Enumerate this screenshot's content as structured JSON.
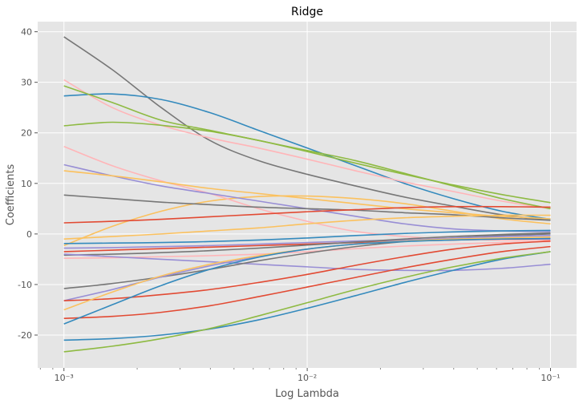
{
  "chart_data": {
    "type": "line",
    "title": "Ridge",
    "xlabel": "Log Lambda",
    "ylabel": "Coefficients",
    "xscale": "log",
    "xlim": [
      0.00078,
      0.128
    ],
    "ylim": [
      -26.5,
      42
    ],
    "grid": true,
    "legend": "none",
    "x_tick_labels": [
      "10⁻³",
      "10⁻²",
      "10⁻¹"
    ],
    "x_tick_values": [
      0.001,
      0.01,
      0.1
    ],
    "y_tick_values": [
      -20,
      -10,
      0,
      10,
      20,
      30,
      40
    ],
    "y_tick_labels": [
      "-20",
      "-10",
      "0",
      "10",
      "20",
      "30",
      "40"
    ],
    "x": [
      0.001,
      0.00158,
      0.00251,
      0.00398,
      0.00631,
      0.01,
      0.0158,
      0.0251,
      0.0398,
      0.0631,
      0.1
    ],
    "series": [
      {
        "color": "#777777",
        "values": [
          39.0,
          32.5,
          25.0,
          18.5,
          14.5,
          11.8,
          9.5,
          7.3,
          5.5,
          3.8,
          2.7
        ]
      },
      {
        "color": "#348ABD",
        "values": [
          27.3,
          27.7,
          26.6,
          24.0,
          20.5,
          17.0,
          13.5,
          10.0,
          7.0,
          4.5,
          2.9
        ]
      },
      {
        "color": "#FBC15E",
        "values": [
          -2.3,
          1.5,
          4.5,
          6.5,
          7.4,
          7.5,
          7.0,
          6.0,
          4.5,
          3.0,
          2.0
        ]
      },
      {
        "color": "#FFB5B8",
        "values": [
          30.5,
          25.0,
          21.5,
          19.0,
          17.0,
          14.8,
          12.5,
          10.3,
          8.4,
          6.5,
          5.0
        ]
      },
      {
        "color": "#8EBA42",
        "values": [
          29.3,
          26.0,
          22.5,
          20.5,
          18.5,
          16.5,
          14.5,
          12.0,
          9.5,
          7.0,
          5.0
        ]
      },
      {
        "color": "#8EBA42",
        "values": [
          21.4,
          22.1,
          21.5,
          20.3,
          18.5,
          16.3,
          14.0,
          11.8,
          9.7,
          7.8,
          6.2
        ]
      },
      {
        "color": "#FFB5B8",
        "values": [
          17.3,
          13.5,
          10.5,
          8.0,
          5.0,
          2.5,
          0.5,
          -0.5,
          -1.0,
          -1.2,
          -1.2
        ]
      },
      {
        "color": "#988ED5",
        "values": [
          13.7,
          11.5,
          9.5,
          8.0,
          6.5,
          5.0,
          3.5,
          2.0,
          1.0,
          0.6,
          0.5
        ]
      },
      {
        "color": "#FBC15E",
        "values": [
          12.5,
          11.5,
          10.3,
          9.0,
          8.0,
          7.0,
          6.0,
          5.0,
          4.2,
          3.5,
          3.0
        ]
      },
      {
        "color": "#777777",
        "values": [
          7.7,
          7.0,
          6.3,
          5.8,
          5.3,
          5.0,
          4.7,
          4.2,
          3.8,
          3.2,
          2.7
        ]
      },
      {
        "color": "#E24A33",
        "values": [
          2.2,
          2.5,
          2.9,
          3.4,
          3.9,
          4.4,
          4.8,
          5.2,
          5.4,
          5.4,
          5.3
        ]
      },
      {
        "color": "#FBC15E",
        "values": [
          -1.0,
          -0.5,
          0.0,
          0.6,
          1.2,
          2.0,
          2.7,
          3.2,
          3.5,
          3.7,
          3.7
        ]
      },
      {
        "color": "#348ABD",
        "values": [
          -1.9,
          -1.8,
          -1.7,
          -1.5,
          -1.2,
          -0.8,
          -0.3,
          0.1,
          0.4,
          0.6,
          0.7
        ]
      },
      {
        "color": "#988ED5",
        "values": [
          -2.8,
          -2.7,
          -2.5,
          -2.3,
          -2.0,
          -1.7,
          -1.4,
          -1.2,
          -1.0,
          -1.0,
          -1.0
        ]
      },
      {
        "color": "#E24A33",
        "values": [
          -3.5,
          -3.2,
          -2.9,
          -2.6,
          -2.3,
          -2.0,
          -1.7,
          -1.4,
          -1.2,
          -1.0,
          -0.9
        ]
      },
      {
        "color": "#777777",
        "values": [
          -4.2,
          -4.0,
          -3.7,
          -3.3,
          -2.8,
          -2.2,
          -1.6,
          -1.0,
          -0.5,
          -0.1,
          0.2
        ]
      },
      {
        "color": "#FFB5B8",
        "values": [
          -4.8,
          -4.7,
          -4.5,
          -4.3,
          -4.0,
          -3.5,
          -2.9,
          -2.4,
          -2.0,
          -1.7,
          -1.5
        ]
      },
      {
        "color": "#988ED5",
        "values": [
          -4.0,
          -4.5,
          -5.0,
          -5.5,
          -6.0,
          -6.5,
          -7.0,
          -7.2,
          -7.2,
          -6.8,
          -6.0
        ]
      },
      {
        "color": "#777777",
        "values": [
          -10.8,
          -9.8,
          -8.5,
          -7.0,
          -5.3,
          -3.8,
          -2.5,
          -1.5,
          -0.8,
          -0.3,
          0.0
        ]
      },
      {
        "color": "#988ED5",
        "values": [
          -13.2,
          -11.0,
          -8.5,
          -6.3,
          -4.5,
          -3.0,
          -2.0,
          -1.3,
          -0.8,
          -0.5,
          -0.3
        ]
      },
      {
        "color": "#E24A33",
        "values": [
          -13.2,
          -12.8,
          -12.0,
          -11.0,
          -9.6,
          -8.0,
          -6.2,
          -4.5,
          -3.0,
          -2.0,
          -1.4
        ]
      },
      {
        "color": "#FBC15E",
        "values": [
          -15.0,
          -11.5,
          -8.3,
          -6.0,
          -4.3,
          -3.0,
          -2.0,
          -1.4,
          -1.0,
          -0.8,
          -0.6
        ]
      },
      {
        "color": "#E24A33",
        "values": [
          -16.7,
          -16.3,
          -15.5,
          -14.2,
          -12.4,
          -10.5,
          -8.6,
          -6.7,
          -5.0,
          -3.5,
          -2.5
        ]
      },
      {
        "color": "#348ABD",
        "values": [
          -17.8,
          -14.0,
          -10.2,
          -7.0,
          -4.6,
          -3.0,
          -2.0,
          -1.5,
          -1.2,
          -1.0,
          -0.9
        ]
      },
      {
        "color": "#348ABD",
        "values": [
          -21.0,
          -20.7,
          -20.0,
          -18.8,
          -17.0,
          -14.7,
          -12.2,
          -9.6,
          -7.2,
          -5.0,
          -3.5
        ]
      },
      {
        "color": "#8EBA42",
        "values": [
          -23.3,
          -22.2,
          -20.7,
          -18.7,
          -16.2,
          -13.6,
          -11.0,
          -8.6,
          -6.5,
          -4.8,
          -3.5
        ]
      }
    ]
  }
}
